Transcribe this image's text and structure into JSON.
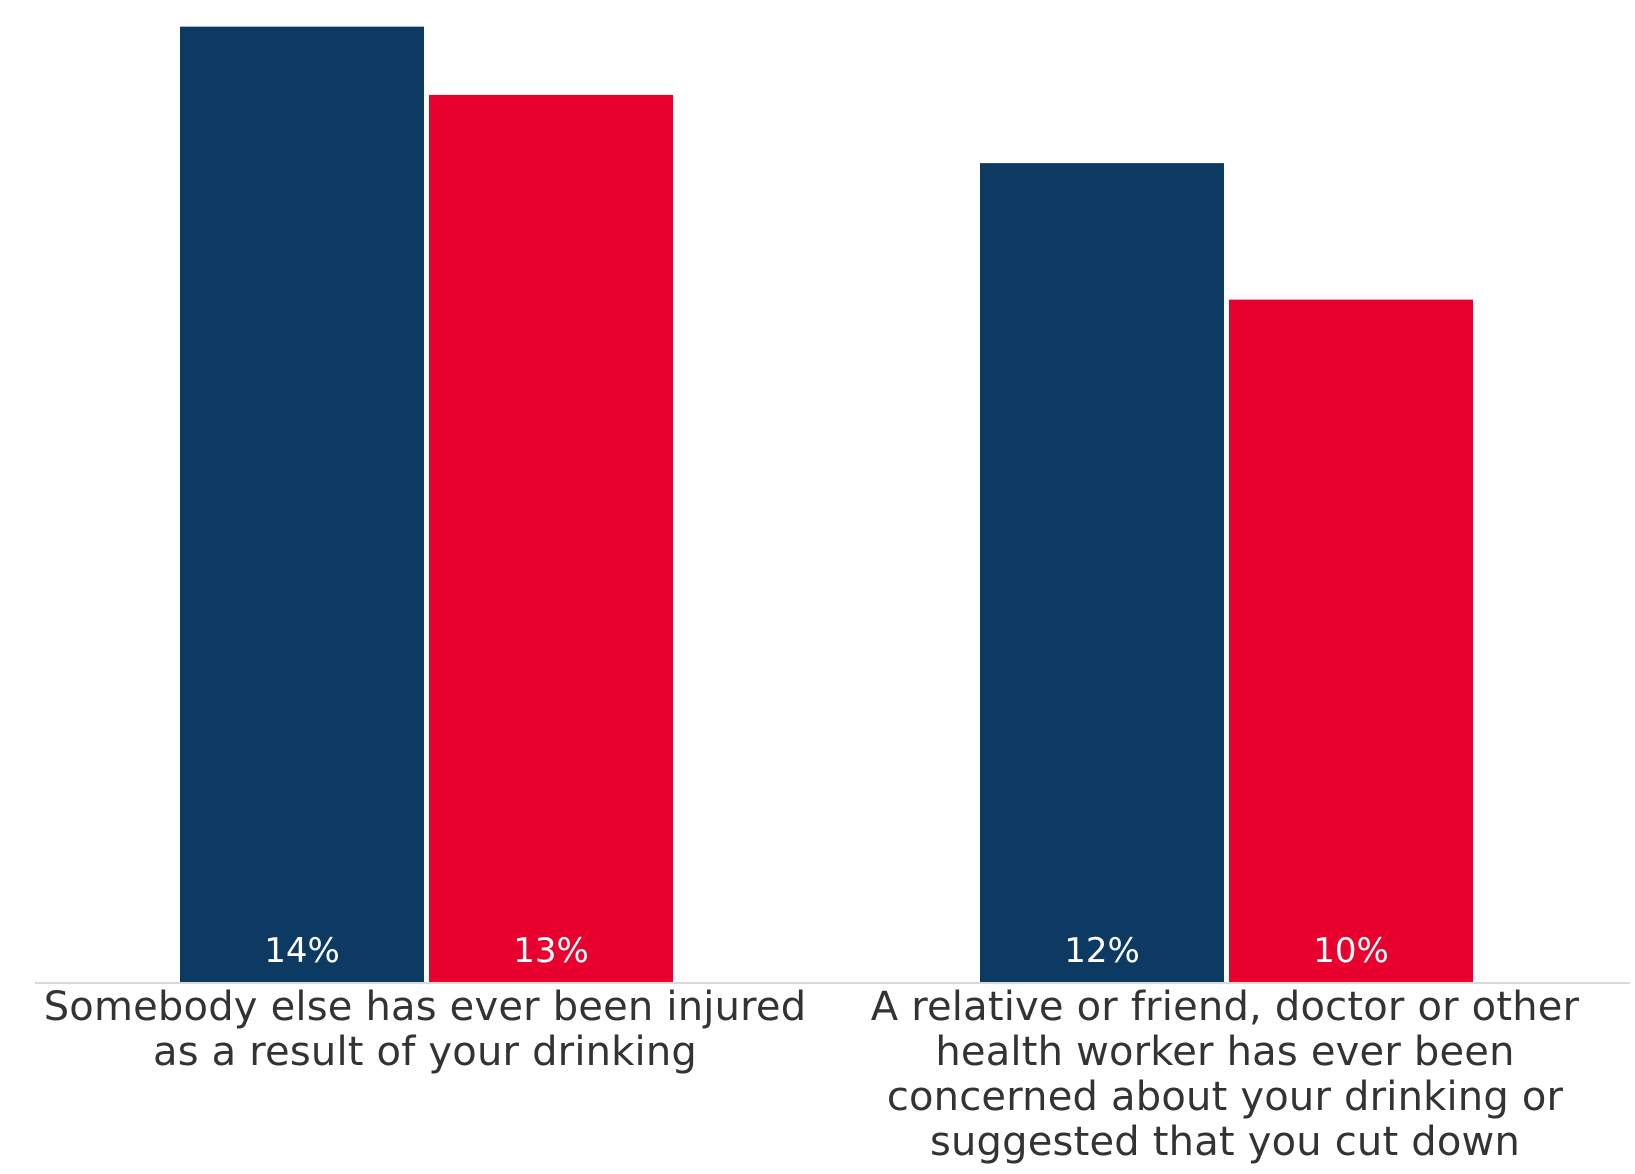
{
  "chart_data": {
    "type": "bar",
    "categories": [
      "Somebody else has ever been injured as a result of your drinking",
      "A relative or friend, doctor or other health worker has ever been concerned about your drinking or suggested that you cut down"
    ],
    "series": [
      {
        "values": [
          14,
          12
        ],
        "color": "#0d3a62"
      },
      {
        "values": [
          13,
          10
        ],
        "color": "#e8002f"
      }
    ],
    "data_labels": [
      [
        "14%",
        "12%"
      ],
      [
        "13%",
        "10%"
      ]
    ],
    "ylim": [
      0,
      14.2
    ],
    "grid": false,
    "legend": "none",
    "label_color": "#ffffff",
    "axis_color": "#d9d9d9"
  }
}
